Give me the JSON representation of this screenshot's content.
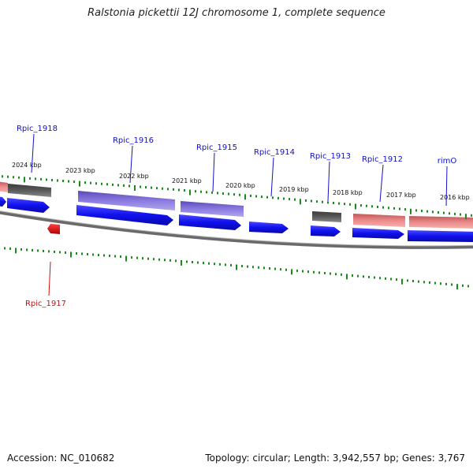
{
  "title": "Ralstonia pickettii 12J chromosome 1, complete sequence",
  "footer": {
    "accession": "Accession: NC_010682",
    "summary": "Topology: circular; Length: 3,942,557 bp; Genes: 3,767"
  },
  "colors": {
    "cds_blue": "#1010ee",
    "gene_purple": "#7a6ad8",
    "gene_pink": "#ec8a8a",
    "gene_gray": "#5a5a5a",
    "reverse_red": "#ee0000",
    "tick_green": "#1a8a1a",
    "label_blue": "#1010cc",
    "label_red": "#cc1010",
    "backbone": "#7a7a7a"
  },
  "kbp_labels": [
    "2024 kbp",
    "2023 kbp",
    "2022 kbp",
    "2021 kbp",
    "2020 kbp",
    "2019 kbp",
    "2018 kbp",
    "2017 kbp",
    "2016 kbp"
  ],
  "gene_labels": [
    {
      "text": "Rpic_1918",
      "strand": "forward"
    },
    {
      "text": "Rpic_1916",
      "strand": "forward"
    },
    {
      "text": "Rpic_1915",
      "strand": "forward"
    },
    {
      "text": "Rpic_1914",
      "strand": "forward"
    },
    {
      "text": "Rpic_1913",
      "strand": "forward"
    },
    {
      "text": "Rpic_1912",
      "strand": "forward"
    },
    {
      "text": "rimO",
      "strand": "forward"
    },
    {
      "text": "Rpic_1917",
      "strand": "reverse"
    }
  ]
}
